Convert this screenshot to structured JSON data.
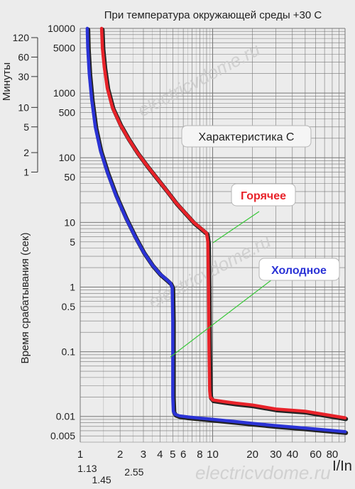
{
  "chart_data": {
    "type": "line",
    "title": "При температура окружающей среды +30 С",
    "xlabel": "I/In",
    "ylabel": "Время срабатывания (сек)",
    "ylabel_minutes": "Минуты",
    "x_scale": "log",
    "y_scale": "log",
    "xlim": [
      1,
      100
    ],
    "ylim": [
      0.004,
      10000
    ],
    "grid": true,
    "x_ticks": [
      {
        "value": 1,
        "label": "1"
      },
      {
        "value": 2,
        "label": "2"
      },
      {
        "value": 3,
        "label": "3"
      },
      {
        "value": 4,
        "label": "4"
      },
      {
        "value": 5,
        "label": "5"
      },
      {
        "value": 6,
        "label": "6"
      },
      {
        "value": 8,
        "label": "8"
      },
      {
        "value": 10,
        "label": "10"
      },
      {
        "value": 20,
        "label": "20"
      },
      {
        "value": 30,
        "label": "30"
      },
      {
        "value": 40,
        "label": "40"
      },
      {
        "value": 60,
        "label": "60"
      },
      {
        "value": 80,
        "label": "80"
      }
    ],
    "x_ticks_extra": [
      {
        "value": 1.13,
        "label": "1.13"
      },
      {
        "value": 1.45,
        "label": "1.45"
      },
      {
        "value": 2.55,
        "label": "2.55"
      }
    ],
    "y_ticks": [
      {
        "value": 10000,
        "label": "10000"
      },
      {
        "value": 5000,
        "label": "5000"
      },
      {
        "value": 1000,
        "label": "1000"
      },
      {
        "value": 500,
        "label": "500"
      },
      {
        "value": 100,
        "label": "100"
      },
      {
        "value": 50,
        "label": "50"
      },
      {
        "value": 10,
        "label": "10"
      },
      {
        "value": 5,
        "label": "5"
      },
      {
        "value": 1,
        "label": "1"
      },
      {
        "value": 0.5,
        "label": "0.5"
      },
      {
        "value": 0.1,
        "label": "0.1"
      },
      {
        "value": 0.01,
        "label": "0.01"
      },
      {
        "value": 0.005,
        "label": "0.005"
      }
    ],
    "minute_ticks": [
      {
        "value": 120,
        "label": "120"
      },
      {
        "value": 60,
        "label": "60"
      },
      {
        "value": 30,
        "label": "30"
      },
      {
        "value": 10,
        "label": "10"
      },
      {
        "value": 5,
        "label": "5"
      },
      {
        "value": 2,
        "label": "2"
      },
      {
        "value": 1,
        "label": "1"
      }
    ],
    "annotations": {
      "characteristic": "Характеристика С",
      "hot": "Горячее",
      "cold": "Холодное",
      "watermark": "electricvdome.ru"
    },
    "series": [
      {
        "name": "Горячее",
        "color": "#e8232a",
        "x": [
          1.45,
          1.47,
          1.52,
          1.6,
          1.75,
          2.0,
          2.3,
          2.7,
          3.2,
          3.8,
          4.5,
          5.3,
          6.2,
          7.2,
          8.2,
          9.0,
          9.2,
          9.3,
          9.4,
          9.5,
          9.6,
          10.0,
          12.0,
          15.0,
          20.0,
          30.0,
          50.0,
          100.0
        ],
        "y": [
          10000,
          5000,
          2500,
          1200,
          600,
          330,
          200,
          120,
          75,
          48,
          31,
          20,
          14,
          10,
          8.0,
          6.8,
          5.0,
          1.0,
          0.1,
          0.025,
          0.02,
          0.018,
          0.017,
          0.016,
          0.015,
          0.013,
          0.012,
          0.0095
        ]
      },
      {
        "name": "Холодное",
        "color": "#2b33d6",
        "x": [
          1.13,
          1.14,
          1.17,
          1.22,
          1.3,
          1.42,
          1.6,
          1.85,
          2.2,
          2.6,
          3.0,
          3.5,
          4.0,
          4.5,
          4.8,
          4.95,
          5.0,
          5.0,
          5.05,
          5.2,
          5.6,
          6.5,
          8.0,
          10.0,
          15.0,
          20.0,
          30.0,
          50.0,
          100.0
        ],
        "y": [
          10000,
          5000,
          2000,
          800,
          300,
          130,
          60,
          27,
          12,
          6.0,
          3.5,
          2.2,
          1.6,
          1.3,
          1.15,
          1.0,
          0.3,
          0.02,
          0.012,
          0.0108,
          0.0102,
          0.0098,
          0.0094,
          0.009,
          0.0083,
          0.0078,
          0.0072,
          0.0066,
          0.0058
        ]
      }
    ]
  }
}
